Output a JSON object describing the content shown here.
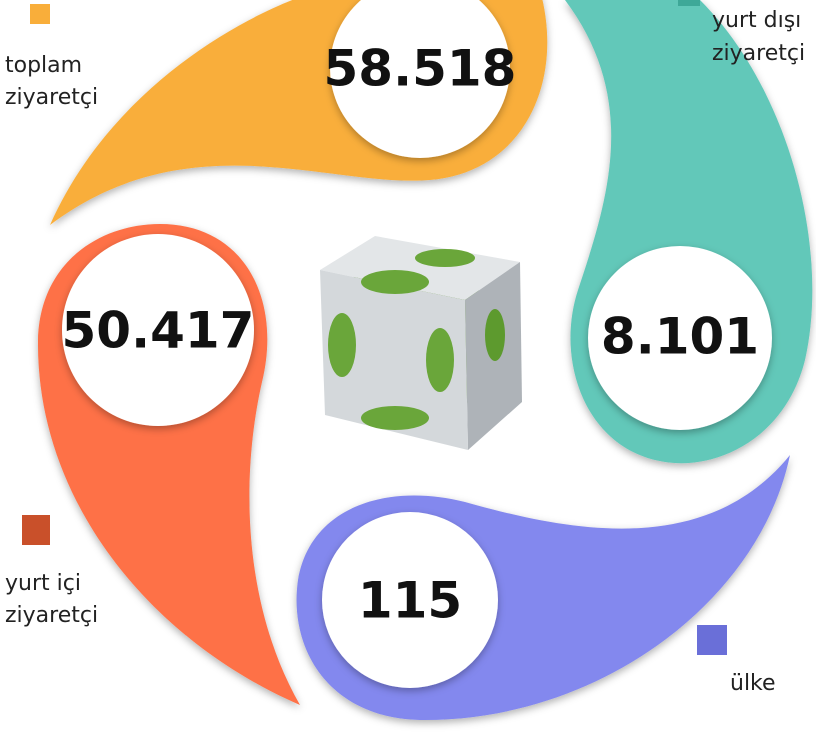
{
  "items": [
    {
      "label": [
        "toplam",
        "ziyaretçi"
      ],
      "value": "58.518"
    },
    {
      "label": [
        "yurt dışı",
        "ziyaretçi"
      ],
      "value": "8.101"
    },
    {
      "label": [
        "ülke"
      ],
      "value": "115"
    },
    {
      "label": [
        "yurt içi",
        "ziyaretçi"
      ],
      "value": "50.417"
    }
  ]
}
